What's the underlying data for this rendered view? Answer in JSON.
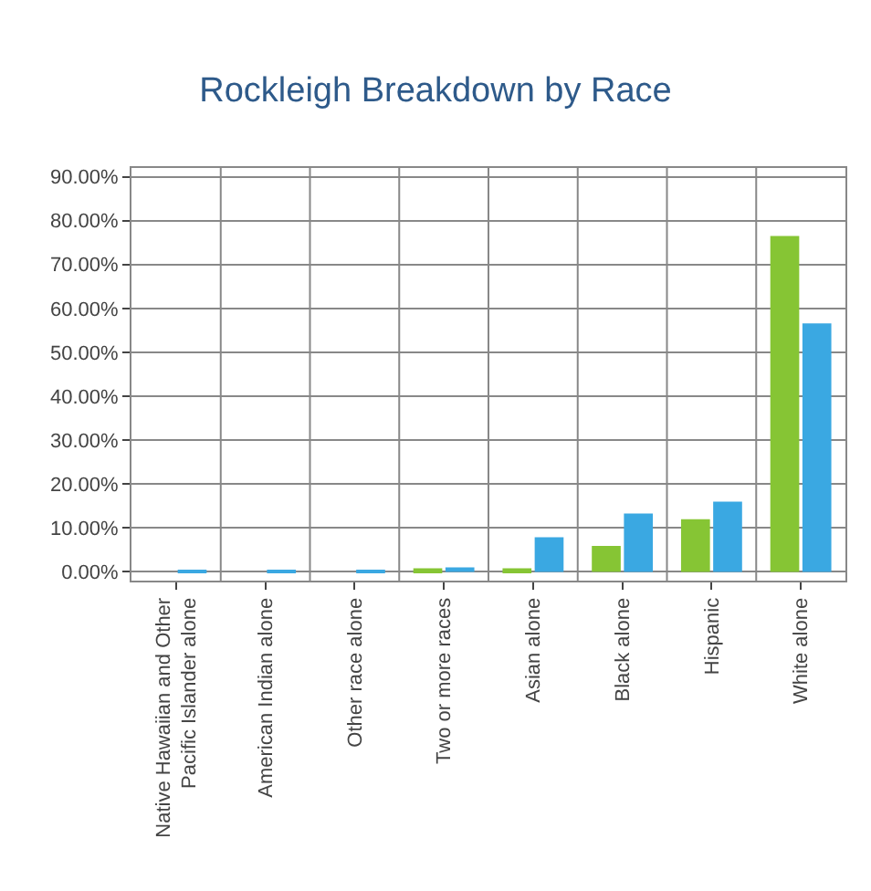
{
  "chart_data": {
    "type": "bar",
    "title": "Rockleigh Breakdown by Race",
    "categories": [
      "Native Hawaiian and Other Pacific Islander alone",
      "American Indian alone",
      "Other race alone",
      "Two or more races",
      "Asian alone",
      "Black alone",
      "Hispanic",
      "White alone"
    ],
    "series": [
      {
        "color": "#86c534",
        "values": [
          0,
          0,
          0,
          0.8,
          0.8,
          5.9,
          12.0,
          76.5
        ]
      },
      {
        "color": "#3aa8e2",
        "values": [
          0.3,
          0.5,
          0.3,
          1.0,
          7.9,
          13.3,
          16.0,
          56.6
        ]
      }
    ],
    "ylim": [
      -2,
      92
    ],
    "yticks": [
      {
        "value": 0,
        "label": "0.00%"
      },
      {
        "value": 10,
        "label": "10.00%"
      },
      {
        "value": 20,
        "label": "20.00%"
      },
      {
        "value": 30,
        "label": "30.00%"
      },
      {
        "value": 40,
        "label": "40.00%"
      },
      {
        "value": 50,
        "label": "50.00%"
      },
      {
        "value": 60,
        "label": "60.00%"
      },
      {
        "value": 70,
        "label": "70.00%"
      },
      {
        "value": 80,
        "label": "80.00%"
      },
      {
        "value": 90,
        "label": "90.00%"
      }
    ],
    "grid": true
  }
}
